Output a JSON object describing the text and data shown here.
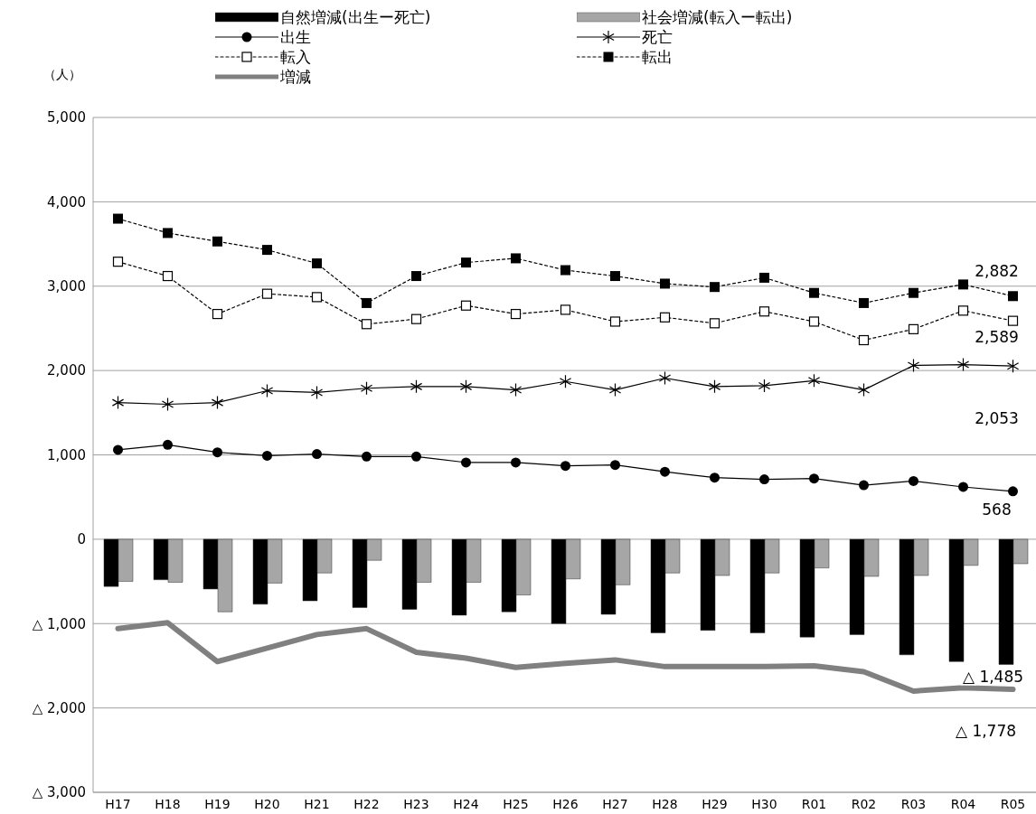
{
  "chart_data": {
    "type": "bar",
    "ylabel": "（人）",
    "categories": [
      "H17",
      "H18",
      "H19",
      "H20",
      "H21",
      "H22",
      "H23",
      "H24",
      "H25",
      "H26",
      "H27",
      "H28",
      "H29",
      "H30",
      "R01",
      "R02",
      "R03",
      "R04",
      "R05"
    ],
    "series": [
      {
        "name": "自然増減(出生ー死亡)",
        "color": "#000000",
        "values": [
          -560,
          -480,
          -590,
          -770,
          -730,
          -810,
          -830,
          -900,
          -860,
          -1000,
          -890,
          -1110,
          -1080,
          -1110,
          -1160,
          -1130,
          -1370,
          -1450,
          -1485
        ]
      },
      {
        "name": "社会増減(転入ー転出)",
        "color": "#a6a6a6",
        "values": [
          -500,
          -510,
          -860,
          -520,
          -400,
          -250,
          -510,
          -510,
          -660,
          -470,
          -540,
          -400,
          -430,
          -400,
          -340,
          -440,
          -430,
          -310,
          -290
        ]
      },
      {
        "name": "出生",
        "type": "line",
        "color": "#000000",
        "marker": "circle",
        "line_style": "solid",
        "values": [
          1060,
          1120,
          1030,
          990,
          1010,
          980,
          980,
          910,
          910,
          870,
          880,
          800,
          730,
          710,
          720,
          640,
          690,
          620,
          568
        ]
      },
      {
        "name": "死亡",
        "type": "line",
        "color": "#000000",
        "marker": "cross",
        "line_style": "solid",
        "values": [
          1620,
          1600,
          1620,
          1760,
          1740,
          1790,
          1810,
          1810,
          1770,
          1870,
          1770,
          1910,
          1810,
          1820,
          1880,
          1770,
          2060,
          2070,
          2053
        ]
      },
      {
        "name": "転入",
        "type": "line",
        "color": "#000000",
        "marker": "square-open",
        "line_style": "dotted",
        "values": [
          3290,
          3120,
          2670,
          2910,
          2870,
          2550,
          2610,
          2770,
          2670,
          2720,
          2580,
          2630,
          2560,
          2700,
          2580,
          2360,
          2490,
          2710,
          2589
        ]
      },
      {
        "name": "転出",
        "type": "line",
        "color": "#000000",
        "marker": "square",
        "line_style": "dotted",
        "values": [
          3800,
          3630,
          3530,
          3430,
          3270,
          2800,
          3120,
          3280,
          3330,
          3190,
          3120,
          3030,
          2990,
          3100,
          2920,
          2800,
          2920,
          3020,
          2882
        ]
      },
      {
        "name": "増減",
        "type": "line",
        "color": "#808080",
        "marker": "none",
        "line_style": "solid",
        "values": [
          -1060,
          -990,
          -1450,
          -1290,
          -1130,
          -1060,
          -1340,
          -1410,
          -1520,
          -1470,
          -1430,
          -1510,
          -1510,
          -1510,
          -1500,
          -1570,
          -1800,
          -1760,
          -1778
        ]
      }
    ],
    "ylim": [
      -3000,
      5000
    ],
    "yticks": [
      {
        "value": -3000,
        "label": "△ 3,000"
      },
      {
        "value": -2000,
        "label": "△ 2,000"
      },
      {
        "value": -1000,
        "label": "△ 1,000"
      },
      0,
      {
        "value": 1000,
        "label": "1,000"
      },
      {
        "value": 2000,
        "label": "2,000"
      },
      {
        "value": 3000,
        "label": "3,000"
      },
      {
        "value": 4000,
        "label": "4,000"
      },
      {
        "value": 5000,
        "label": "5,000"
      }
    ],
    "grid": "y",
    "legend": "top",
    "annotations": [
      {
        "text": "2,882",
        "x": "R05",
        "y": 2882
      },
      {
        "text": "2,589",
        "x": "R05",
        "y": 2589
      },
      {
        "text": "2,053",
        "x": "R05",
        "y": 2053
      },
      {
        "text": "568",
        "x": "R05",
        "y": 568
      },
      {
        "text": "△ 1,485",
        "x": "R05",
        "y": -1485
      },
      {
        "text": "△ 1,778",
        "x": "R05",
        "y": -1778
      }
    ]
  }
}
